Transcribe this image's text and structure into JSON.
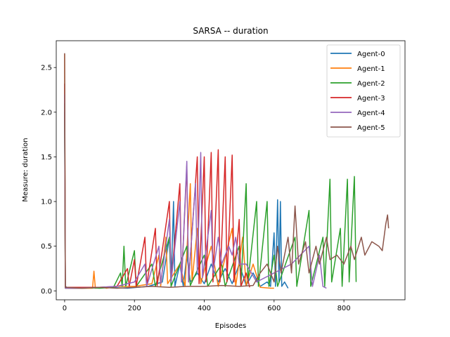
{
  "chart_data": {
    "type": "line",
    "title": "SARSA -- duration",
    "xlabel": "Episodes",
    "ylabel": "Measure: duration",
    "xlim": [
      -24,
      975
    ],
    "ylim": [
      -0.1,
      2.8
    ],
    "xticks": [
      0,
      200,
      400,
      600,
      800
    ],
    "yticks": [
      0.0,
      0.5,
      1.0,
      1.5,
      2.0,
      2.5
    ],
    "ytick_labels": [
      "0.0",
      "0.5",
      "1.0",
      "1.5",
      "2.0",
      "2.5"
    ],
    "grid": false,
    "legend": "top-right",
    "series": [
      {
        "name": "Agent-0",
        "color": "#1f77b4",
        "points": [
          [
            0,
            2.0
          ],
          [
            2,
            0.05
          ],
          [
            10,
            0.03
          ],
          [
            60,
            0.03
          ],
          [
            120,
            0.04
          ],
          [
            180,
            0.03
          ],
          [
            240,
            0.05
          ],
          [
            280,
            0.1
          ],
          [
            300,
            0.6
          ],
          [
            305,
            0.05
          ],
          [
            312,
            1.0
          ],
          [
            316,
            0.05
          ],
          [
            330,
            0.3
          ],
          [
            340,
            0.05
          ],
          [
            350,
            0.4
          ],
          [
            360,
            0.1
          ],
          [
            380,
            0.2
          ],
          [
            400,
            0.08
          ],
          [
            420,
            0.3
          ],
          [
            440,
            0.1
          ],
          [
            460,
            0.25
          ],
          [
            480,
            0.08
          ],
          [
            500,
            0.3
          ],
          [
            520,
            0.06
          ],
          [
            540,
            0.2
          ],
          [
            560,
            0.05
          ],
          [
            580,
            0.1
          ],
          [
            590,
            0.05
          ],
          [
            600,
            0.65
          ],
          [
            604,
            0.05
          ],
          [
            610,
            1.02
          ],
          [
            614,
            0.1
          ],
          [
            618,
            1.0
          ],
          [
            622,
            0.05
          ],
          [
            630,
            0.1
          ],
          [
            640,
            0.03
          ]
        ]
      },
      {
        "name": "Agent-1",
        "color": "#ff7f0e",
        "points": [
          [
            0,
            2.65
          ],
          [
            2,
            0.03
          ],
          [
            30,
            0.03
          ],
          [
            60,
            0.03
          ],
          [
            80,
            0.03
          ],
          [
            84,
            0.22
          ],
          [
            88,
            0.03
          ],
          [
            110,
            0.04
          ],
          [
            120,
            0.03
          ],
          [
            150,
            0.05
          ],
          [
            200,
            0.05
          ],
          [
            250,
            0.08
          ],
          [
            270,
            0.4
          ],
          [
            275,
            0.05
          ],
          [
            290,
            0.6
          ],
          [
            295,
            0.08
          ],
          [
            330,
            0.3
          ],
          [
            345,
            0.05
          ],
          [
            360,
            1.2
          ],
          [
            365,
            0.1
          ],
          [
            380,
            0.7
          ],
          [
            390,
            0.08
          ],
          [
            420,
            0.5
          ],
          [
            440,
            0.05
          ],
          [
            480,
            0.7
          ],
          [
            490,
            0.05
          ],
          [
            510,
            0.6
          ],
          [
            520,
            0.06
          ],
          [
            540,
            0.3
          ],
          [
            560,
            0.04
          ],
          [
            590,
            0.03
          ],
          [
            600,
            0.03
          ]
        ]
      },
      {
        "name": "Agent-2",
        "color": "#2ca02c",
        "points": [
          [
            0,
            2.1
          ],
          [
            2,
            0.03
          ],
          [
            40,
            0.04
          ],
          [
            100,
            0.03
          ],
          [
            140,
            0.04
          ],
          [
            160,
            0.2
          ],
          [
            165,
            0.05
          ],
          [
            170,
            0.5
          ],
          [
            175,
            0.05
          ],
          [
            200,
            0.45
          ],
          [
            205,
            0.05
          ],
          [
            250,
            0.3
          ],
          [
            260,
            0.05
          ],
          [
            300,
            0.6
          ],
          [
            305,
            0.05
          ],
          [
            350,
            0.5
          ],
          [
            360,
            0.06
          ],
          [
            400,
            0.4
          ],
          [
            410,
            0.05
          ],
          [
            450,
            0.3
          ],
          [
            460,
            0.05
          ],
          [
            500,
            0.5
          ],
          [
            505,
            0.05
          ],
          [
            520,
            1.2
          ],
          [
            525,
            0.1
          ],
          [
            550,
            1.0
          ],
          [
            555,
            0.05
          ],
          [
            580,
            1.0
          ],
          [
            585,
            0.05
          ],
          [
            600,
            0.4
          ],
          [
            610,
            0.05
          ],
          [
            660,
            0.6
          ],
          [
            665,
            0.05
          ],
          [
            700,
            0.9
          ],
          [
            705,
            0.05
          ],
          [
            740,
            0.6
          ],
          [
            745,
            0.05
          ],
          [
            760,
            1.25
          ],
          [
            765,
            0.1
          ],
          [
            790,
            0.7
          ],
          [
            795,
            0.05
          ],
          [
            810,
            1.25
          ],
          [
            815,
            0.1
          ],
          [
            830,
            1.28
          ],
          [
            835,
            0.1
          ]
        ]
      },
      {
        "name": "Agent-3",
        "color": "#d62728",
        "points": [
          [
            0,
            2.32
          ],
          [
            2,
            0.04
          ],
          [
            40,
            0.04
          ],
          [
            100,
            0.04
          ],
          [
            150,
            0.05
          ],
          [
            180,
            0.25
          ],
          [
            185,
            0.05
          ],
          [
            200,
            0.35
          ],
          [
            205,
            0.05
          ],
          [
            230,
            0.6
          ],
          [
            235,
            0.06
          ],
          [
            260,
            0.7
          ],
          [
            265,
            0.06
          ],
          [
            300,
            1.0
          ],
          [
            305,
            0.1
          ],
          [
            330,
            1.2
          ],
          [
            335,
            0.1
          ],
          [
            350,
            1.4
          ],
          [
            355,
            0.1
          ],
          [
            380,
            1.5
          ],
          [
            385,
            0.08
          ],
          [
            400,
            1.5
          ],
          [
            405,
            0.1
          ],
          [
            420,
            1.55
          ],
          [
            425,
            0.1
          ],
          [
            440,
            1.58
          ],
          [
            445,
            0.1
          ],
          [
            460,
            1.5
          ],
          [
            465,
            0.1
          ],
          [
            480,
            1.52
          ],
          [
            485,
            0.1
          ],
          [
            500,
            0.8
          ],
          [
            505,
            0.05
          ],
          [
            520,
            0.2
          ],
          [
            530,
            0.04
          ]
        ]
      },
      {
        "name": "Agent-4",
        "color": "#9467bd",
        "points": [
          [
            0,
            2.2
          ],
          [
            2,
            0.03
          ],
          [
            40,
            0.03
          ],
          [
            100,
            0.04
          ],
          [
            150,
            0.05
          ],
          [
            200,
            0.1
          ],
          [
            230,
            0.3
          ],
          [
            235,
            0.05
          ],
          [
            270,
            0.5
          ],
          [
            275,
            0.08
          ],
          [
            300,
            0.8
          ],
          [
            305,
            0.1
          ],
          [
            330,
            1.0
          ],
          [
            335,
            0.1
          ],
          [
            350,
            1.45
          ],
          [
            355,
            0.1
          ],
          [
            375,
            1.2
          ],
          [
            380,
            0.2
          ],
          [
            390,
            1.55
          ],
          [
            395,
            0.15
          ],
          [
            420,
            0.9
          ],
          [
            425,
            0.2
          ],
          [
            440,
            0.6
          ],
          [
            450,
            0.3
          ],
          [
            470,
            0.5
          ],
          [
            480,
            0.4
          ],
          [
            490,
            0.6
          ],
          [
            500,
            0.3
          ],
          [
            520,
            0.3
          ],
          [
            550,
            0.1
          ],
          [
            600,
            0.2
          ],
          [
            650,
            0.3
          ],
          [
            700,
            0.5
          ],
          [
            710,
            0.05
          ],
          [
            730,
            0.4
          ],
          [
            740,
            0.05
          ],
          [
            750,
            0.03
          ]
        ]
      },
      {
        "name": "Agent-5",
        "color": "#8c564b",
        "points": [
          [
            0,
            2.66
          ],
          [
            2,
            0.04
          ],
          [
            50,
            0.03
          ],
          [
            100,
            0.04
          ],
          [
            150,
            0.03
          ],
          [
            200,
            0.04
          ],
          [
            250,
            0.05
          ],
          [
            300,
            0.04
          ],
          [
            350,
            0.05
          ],
          [
            400,
            0.05
          ],
          [
            450,
            0.06
          ],
          [
            500,
            0.05
          ],
          [
            540,
            0.06
          ],
          [
            560,
            0.2
          ],
          [
            580,
            0.3
          ],
          [
            600,
            0.1
          ],
          [
            610,
            0.5
          ],
          [
            620,
            0.2
          ],
          [
            640,
            0.6
          ],
          [
            650,
            0.2
          ],
          [
            660,
            0.95
          ],
          [
            670,
            0.3
          ],
          [
            690,
            0.55
          ],
          [
            700,
            0.2
          ],
          [
            720,
            0.5
          ],
          [
            730,
            0.3
          ],
          [
            750,
            0.6
          ],
          [
            760,
            0.35
          ],
          [
            780,
            0.4
          ],
          [
            800,
            0.3
          ],
          [
            820,
            0.5
          ],
          [
            830,
            0.35
          ],
          [
            850,
            0.6
          ],
          [
            860,
            0.4
          ],
          [
            880,
            0.55
          ],
          [
            900,
            0.5
          ],
          [
            910,
            0.45
          ],
          [
            920,
            0.75
          ],
          [
            925,
            0.85
          ],
          [
            928,
            0.7
          ]
        ]
      }
    ]
  }
}
